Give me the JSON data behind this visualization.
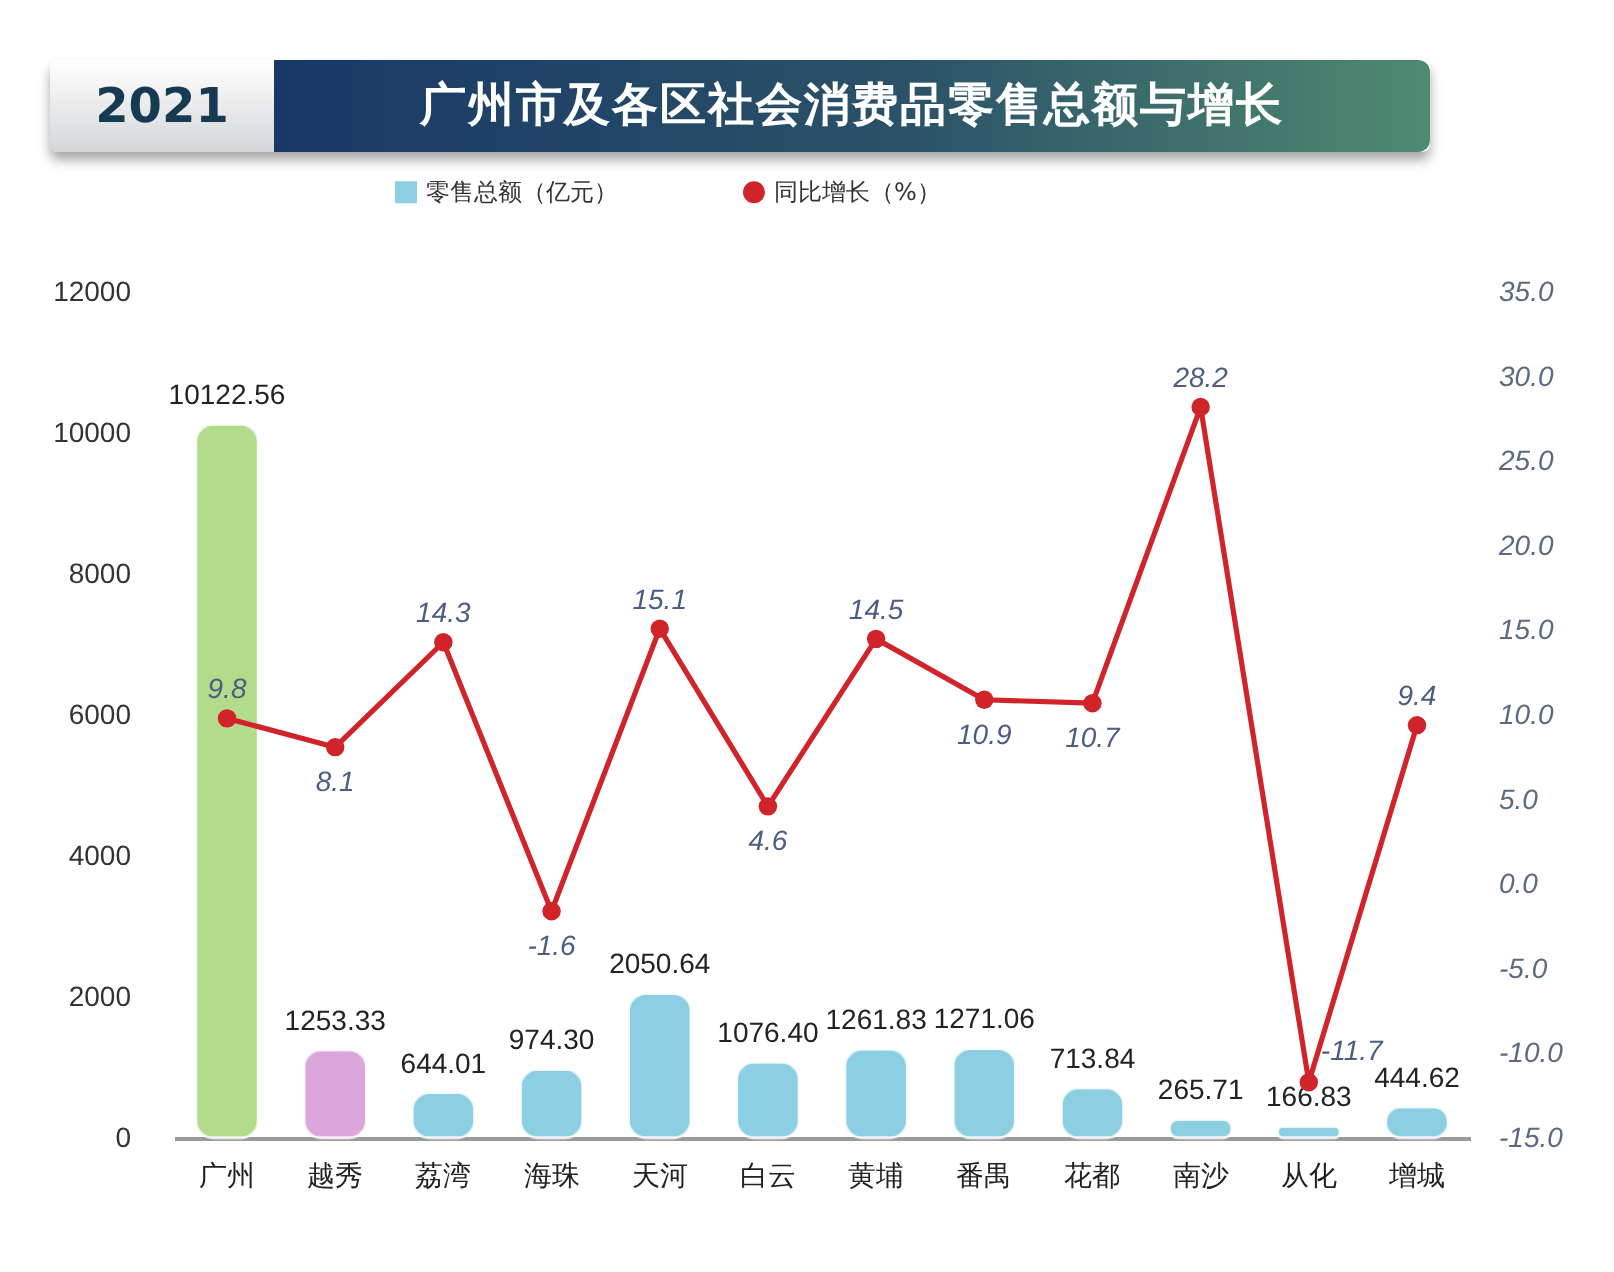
{
  "chart_data": {
    "type": "bar",
    "title": "广州市及各区社会消费品零售总额与增长",
    "subtitle": "2021",
    "categories": [
      "广州",
      "越秀",
      "荔湾",
      "海珠",
      "天河",
      "白云",
      "黄埔",
      "番禺",
      "花都",
      "南沙",
      "从化",
      "增城"
    ],
    "series": [
      {
        "name": "零售总额（亿元）",
        "color": "#8ccfe2",
        "colors": [
          "#b2dc8c",
          "#dba6dc",
          "#8ccfe2",
          "#8ccfe2",
          "#8ccfe2",
          "#8ccfe2",
          "#8ccfe2",
          "#8ccfe2",
          "#8ccfe2",
          "#8ccfe2",
          "#8ccfe2",
          "#8ccfe2"
        ],
        "values": [
          10122.56,
          1253.33,
          644.01,
          974.3,
          2050.64,
          1076.4,
          1261.83,
          1271.06,
          713.84,
          265.71,
          166.83,
          444.62
        ],
        "value_labels": [
          "10122.56",
          "1253.33",
          "644.01",
          "974.30",
          "2050.64",
          "1076.40",
          "1261.83",
          "1271.06",
          "713.84",
          "265.71",
          "166.83",
          "444.62"
        ]
      },
      {
        "name": "同比增长（%）",
        "type": "line",
        "axis": "y2",
        "color": "#d0232a",
        "values": [
          9.8,
          8.1,
          14.3,
          -1.6,
          15.1,
          4.6,
          14.5,
          10.9,
          10.7,
          28.2,
          -11.7,
          9.4
        ],
        "value_labels": [
          "9.8",
          "8.1",
          "14.3",
          "-1.6",
          "15.1",
          "4.6",
          "14.5",
          "10.9",
          "10.7",
          "28.2",
          "-11.7",
          "9.4"
        ]
      }
    ],
    "ylim": [
      0,
      12000
    ],
    "yticks": [
      0,
      2000,
      4000,
      6000,
      8000,
      10000,
      12000
    ],
    "y2lim": [
      -15,
      35
    ],
    "y2ticks": [
      {
        "value": -15,
        "label": "-15.0"
      },
      {
        "value": -10,
        "label": "-10.0"
      },
      {
        "value": -5,
        "label": "-5.0"
      },
      {
        "value": 0,
        "label": "0.0"
      },
      {
        "value": 5,
        "label": "5.0"
      },
      {
        "value": 10,
        "label": "10.0"
      },
      {
        "value": 15,
        "label": "15.0"
      },
      {
        "value": 20,
        "label": "20.0"
      },
      {
        "value": 25,
        "label": "25.0"
      },
      {
        "value": 30,
        "label": "30.0"
      },
      {
        "value": 35,
        "label": "35.0"
      }
    ],
    "legend": "top",
    "marker": "circle"
  }
}
